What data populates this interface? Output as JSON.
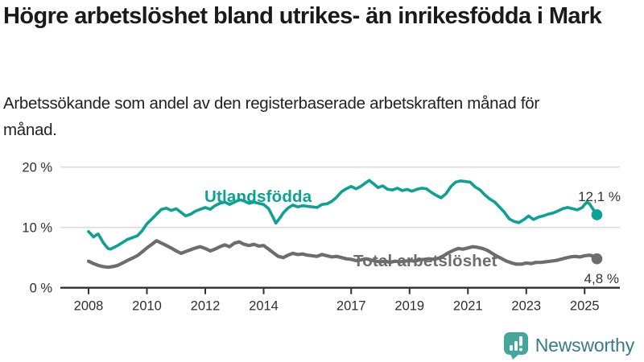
{
  "header": {
    "title": "Högre arbetslöshet bland utrikes- än inrikesfödda i Mark",
    "subtitle": "Arbetssökande som andel av den registerbaserade arbetskraften månad för månad."
  },
  "footer": {
    "brand": "Newsworthy",
    "logo_icon": "bar-chart-speech-bubble-icon"
  },
  "colors": {
    "title_text": "#1a1a1a",
    "axis": "#2f2f2f",
    "grid": "#dcdcdc",
    "tick_label": "#2e2e2e",
    "value_label": "#333333",
    "brand_icon": "#45a69c",
    "brand_text": "#3a7a88"
  },
  "chart_data": {
    "type": "line",
    "x_unit": "year_decimal",
    "xlim": [
      2007.05,
      2026.2
    ],
    "ylim": [
      0,
      20
    ],
    "grid": "horizontal",
    "yticks": [
      {
        "value": 0,
        "label": "0 %"
      },
      {
        "value": 10,
        "label": "10 %"
      },
      {
        "value": 20,
        "label": "20 %"
      }
    ],
    "xticks": [
      {
        "value": 2008,
        "label": "2008"
      },
      {
        "value": 2010,
        "label": "2010"
      },
      {
        "value": 2012,
        "label": "2012"
      },
      {
        "value": 2014,
        "label": "2014"
      },
      {
        "value": 2017,
        "label": "2017"
      },
      {
        "value": 2019,
        "label": "2019"
      },
      {
        "value": 2021,
        "label": "2021"
      },
      {
        "value": 2023,
        "label": "2023"
      },
      {
        "value": 2025,
        "label": "2025"
      }
    ],
    "series": [
      {
        "name": "Utlandsfödda",
        "color": "#0ba294",
        "end_label": "12,1 %",
        "end_value": 12.1,
        "points": [
          [
            2008.0,
            9.3
          ],
          [
            2008.08,
            8.9
          ],
          [
            2008.17,
            8.4
          ],
          [
            2008.25,
            8.7
          ],
          [
            2008.33,
            8.9
          ],
          [
            2008.42,
            8.2
          ],
          [
            2008.5,
            7.5
          ],
          [
            2008.58,
            7.0
          ],
          [
            2008.67,
            6.5
          ],
          [
            2008.75,
            6.4
          ],
          [
            2008.83,
            6.6
          ],
          [
            2008.92,
            6.8
          ],
          [
            2009.0,
            7.0
          ],
          [
            2009.17,
            7.5
          ],
          [
            2009.33,
            8.0
          ],
          [
            2009.5,
            8.3
          ],
          [
            2009.67,
            8.6
          ],
          [
            2009.83,
            9.4
          ],
          [
            2010.0,
            10.6
          ],
          [
            2010.17,
            11.4
          ],
          [
            2010.33,
            12.2
          ],
          [
            2010.5,
            13.0
          ],
          [
            2010.67,
            13.2
          ],
          [
            2010.83,
            12.8
          ],
          [
            2011.0,
            13.1
          ],
          [
            2011.17,
            12.5
          ],
          [
            2011.33,
            11.9
          ],
          [
            2011.5,
            12.2
          ],
          [
            2011.67,
            12.7
          ],
          [
            2011.83,
            13.0
          ],
          [
            2012.0,
            13.3
          ],
          [
            2012.17,
            13.0
          ],
          [
            2012.33,
            13.6
          ],
          [
            2012.5,
            14.0
          ],
          [
            2012.67,
            14.2
          ],
          [
            2012.83,
            13.8
          ],
          [
            2013.0,
            14.2
          ],
          [
            2013.17,
            14.6
          ],
          [
            2013.33,
            14.4
          ],
          [
            2013.5,
            14.0
          ],
          [
            2013.67,
            14.2
          ],
          [
            2013.83,
            14.0
          ],
          [
            2014.0,
            13.8
          ],
          [
            2014.17,
            13.1
          ],
          [
            2014.33,
            11.6
          ],
          [
            2014.42,
            10.7
          ],
          [
            2014.5,
            11.2
          ],
          [
            2014.58,
            11.7
          ],
          [
            2014.67,
            12.4
          ],
          [
            2014.83,
            13.2
          ],
          [
            2015.0,
            13.7
          ],
          [
            2015.17,
            13.4
          ],
          [
            2015.33,
            13.6
          ],
          [
            2015.5,
            13.5
          ],
          [
            2015.67,
            13.4
          ],
          [
            2015.83,
            13.3
          ],
          [
            2016.0,
            13.8
          ],
          [
            2016.17,
            13.9
          ],
          [
            2016.33,
            14.3
          ],
          [
            2016.5,
            15.0
          ],
          [
            2016.67,
            15.9
          ],
          [
            2016.83,
            16.4
          ],
          [
            2017.0,
            16.8
          ],
          [
            2017.17,
            16.4
          ],
          [
            2017.33,
            16.8
          ],
          [
            2017.5,
            17.4
          ],
          [
            2017.62,
            17.8
          ],
          [
            2017.75,
            17.3
          ],
          [
            2017.92,
            16.6
          ],
          [
            2018.08,
            16.9
          ],
          [
            2018.25,
            16.3
          ],
          [
            2018.42,
            16.2
          ],
          [
            2018.58,
            16.5
          ],
          [
            2018.75,
            16.1
          ],
          [
            2018.92,
            16.3
          ],
          [
            2019.08,
            16.0
          ],
          [
            2019.25,
            16.3
          ],
          [
            2019.42,
            16.5
          ],
          [
            2019.58,
            16.4
          ],
          [
            2019.75,
            15.8
          ],
          [
            2019.92,
            15.3
          ],
          [
            2020.08,
            14.9
          ],
          [
            2020.25,
            15.6
          ],
          [
            2020.42,
            16.8
          ],
          [
            2020.58,
            17.5
          ],
          [
            2020.75,
            17.7
          ],
          [
            2020.92,
            17.6
          ],
          [
            2021.08,
            17.5
          ],
          [
            2021.25,
            16.7
          ],
          [
            2021.42,
            16.2
          ],
          [
            2021.58,
            15.4
          ],
          [
            2021.75,
            14.7
          ],
          [
            2021.92,
            14.2
          ],
          [
            2022.08,
            13.4
          ],
          [
            2022.25,
            12.5
          ],
          [
            2022.42,
            11.4
          ],
          [
            2022.58,
            11.0
          ],
          [
            2022.75,
            10.8
          ],
          [
            2022.92,
            11.3
          ],
          [
            2023.08,
            11.9
          ],
          [
            2023.25,
            11.3
          ],
          [
            2023.42,
            11.7
          ],
          [
            2023.58,
            11.9
          ],
          [
            2023.75,
            12.2
          ],
          [
            2023.92,
            12.4
          ],
          [
            2024.08,
            12.7
          ],
          [
            2024.25,
            13.1
          ],
          [
            2024.42,
            13.3
          ],
          [
            2024.58,
            13.1
          ],
          [
            2024.75,
            12.9
          ],
          [
            2024.92,
            13.3
          ],
          [
            2025.0,
            13.8
          ],
          [
            2025.08,
            14.2
          ],
          [
            2025.17,
            13.9
          ],
          [
            2025.25,
            13.3
          ],
          [
            2025.33,
            12.7
          ],
          [
            2025.42,
            12.1
          ]
        ]
      },
      {
        "name": "Total arbetslöshet",
        "color": "#6d6d6d",
        "end_label": "4,8 %",
        "end_value": 4.8,
        "points": [
          [
            2008.0,
            4.4
          ],
          [
            2008.17,
            4.0
          ],
          [
            2008.33,
            3.7
          ],
          [
            2008.5,
            3.5
          ],
          [
            2008.67,
            3.4
          ],
          [
            2008.83,
            3.5
          ],
          [
            2009.0,
            3.7
          ],
          [
            2009.17,
            4.1
          ],
          [
            2009.33,
            4.5
          ],
          [
            2009.5,
            4.9
          ],
          [
            2009.67,
            5.3
          ],
          [
            2009.83,
            5.9
          ],
          [
            2010.0,
            6.6
          ],
          [
            2010.17,
            7.2
          ],
          [
            2010.33,
            7.8
          ],
          [
            2010.5,
            7.4
          ],
          [
            2010.67,
            7.0
          ],
          [
            2010.83,
            6.6
          ],
          [
            2011.0,
            6.1
          ],
          [
            2011.17,
            5.7
          ],
          [
            2011.33,
            6.0
          ],
          [
            2011.5,
            6.3
          ],
          [
            2011.67,
            6.6
          ],
          [
            2011.83,
            6.8
          ],
          [
            2012.0,
            6.5
          ],
          [
            2012.17,
            6.1
          ],
          [
            2012.33,
            6.4
          ],
          [
            2012.5,
            6.8
          ],
          [
            2012.67,
            7.1
          ],
          [
            2012.83,
            6.8
          ],
          [
            2013.0,
            7.4
          ],
          [
            2013.17,
            7.6
          ],
          [
            2013.33,
            7.2
          ],
          [
            2013.5,
            7.0
          ],
          [
            2013.67,
            7.2
          ],
          [
            2013.83,
            6.9
          ],
          [
            2014.0,
            7.0
          ],
          [
            2014.17,
            6.4
          ],
          [
            2014.33,
            5.8
          ],
          [
            2014.5,
            5.2
          ],
          [
            2014.67,
            5.0
          ],
          [
            2014.83,
            5.4
          ],
          [
            2015.0,
            5.7
          ],
          [
            2015.17,
            5.5
          ],
          [
            2015.33,
            5.6
          ],
          [
            2015.5,
            5.4
          ],
          [
            2015.67,
            5.3
          ],
          [
            2015.83,
            5.2
          ],
          [
            2016.0,
            5.5
          ],
          [
            2016.17,
            5.3
          ],
          [
            2016.33,
            5.1
          ],
          [
            2016.5,
            5.2
          ],
          [
            2016.67,
            5.0
          ],
          [
            2016.83,
            4.8
          ],
          [
            2017.0,
            4.7
          ],
          [
            2017.17,
            4.5
          ],
          [
            2017.33,
            4.6
          ],
          [
            2017.5,
            4.8
          ],
          [
            2017.67,
            4.6
          ],
          [
            2017.83,
            4.4
          ],
          [
            2018.0,
            4.3
          ],
          [
            2018.17,
            4.4
          ],
          [
            2018.33,
            4.2
          ],
          [
            2018.5,
            4.4
          ],
          [
            2018.67,
            4.3
          ],
          [
            2018.83,
            4.4
          ],
          [
            2019.0,
            4.5
          ],
          [
            2019.17,
            4.4
          ],
          [
            2019.33,
            4.6
          ],
          [
            2019.5,
            4.7
          ],
          [
            2019.67,
            4.8
          ],
          [
            2019.83,
            4.7
          ],
          [
            2020.0,
            4.9
          ],
          [
            2020.17,
            5.3
          ],
          [
            2020.33,
            5.8
          ],
          [
            2020.5,
            6.2
          ],
          [
            2020.67,
            6.5
          ],
          [
            2020.83,
            6.4
          ],
          [
            2021.0,
            6.6
          ],
          [
            2021.17,
            6.8
          ],
          [
            2021.33,
            6.7
          ],
          [
            2021.5,
            6.5
          ],
          [
            2021.67,
            6.2
          ],
          [
            2021.83,
            5.7
          ],
          [
            2022.0,
            5.2
          ],
          [
            2022.17,
            4.8
          ],
          [
            2022.33,
            4.4
          ],
          [
            2022.5,
            4.1
          ],
          [
            2022.67,
            3.9
          ],
          [
            2022.83,
            3.9
          ],
          [
            2023.0,
            4.1
          ],
          [
            2023.17,
            4.0
          ],
          [
            2023.33,
            4.2
          ],
          [
            2023.5,
            4.2
          ],
          [
            2023.67,
            4.3
          ],
          [
            2023.83,
            4.4
          ],
          [
            2024.0,
            4.5
          ],
          [
            2024.17,
            4.7
          ],
          [
            2024.33,
            4.9
          ],
          [
            2024.5,
            5.1
          ],
          [
            2024.67,
            5.2
          ],
          [
            2024.83,
            5.1
          ],
          [
            2025.0,
            5.3
          ],
          [
            2025.17,
            5.4
          ],
          [
            2025.25,
            5.3
          ],
          [
            2025.33,
            5.1
          ],
          [
            2025.42,
            4.8
          ]
        ]
      }
    ]
  }
}
